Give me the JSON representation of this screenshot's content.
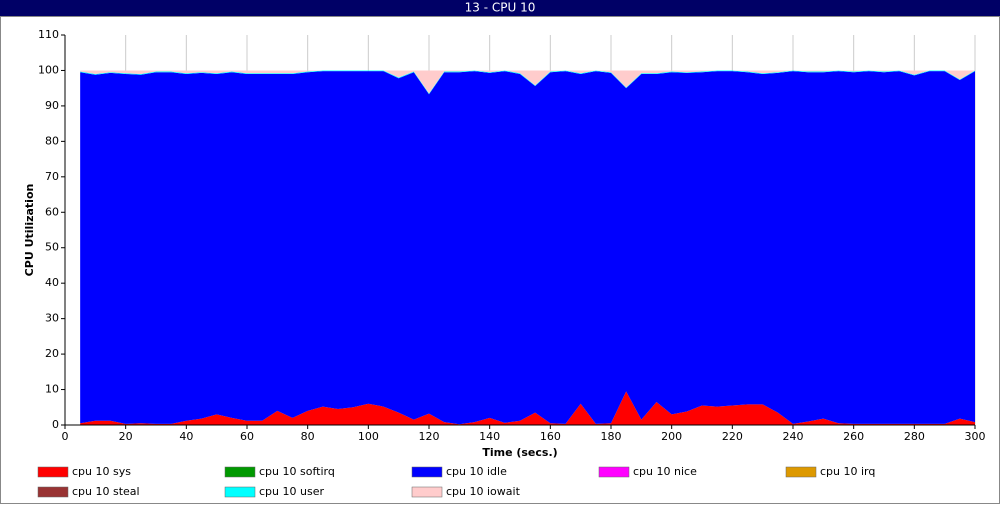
{
  "chart_data": {
    "type": "stacked-area",
    "title": "13 - CPU 10",
    "x_label": "Time (secs.)",
    "y_label": "CPU Utilization",
    "x": [
      5,
      10,
      15,
      20,
      25,
      30,
      35,
      40,
      45,
      50,
      55,
      60,
      65,
      70,
      75,
      80,
      85,
      90,
      95,
      100,
      105,
      110,
      115,
      120,
      125,
      130,
      135,
      140,
      145,
      150,
      155,
      160,
      165,
      170,
      175,
      180,
      185,
      190,
      195,
      200,
      205,
      210,
      215,
      220,
      225,
      230,
      235,
      240,
      245,
      250,
      255,
      260,
      265,
      270,
      275,
      280,
      285,
      290,
      295,
      300
    ],
    "xlim": [
      0,
      300
    ],
    "xticks": [
      0,
      20,
      40,
      60,
      80,
      100,
      120,
      140,
      160,
      180,
      200,
      220,
      240,
      260,
      280,
      300
    ],
    "ylim": [
      0,
      110
    ],
    "yticks": [
      0,
      10,
      20,
      30,
      40,
      50,
      60,
      70,
      80,
      90,
      100,
      110
    ],
    "grid": "x",
    "legend": "bottom",
    "series": [
      {
        "name": "cpu 10 sys",
        "color": "#ff0000",
        "values": [
          0.5,
          1.2,
          1.2,
          0.3,
          0.5,
          0.3,
          0.3,
          1.2,
          1.8,
          3.0,
          2.0,
          1.2,
          1.2,
          4.0,
          2.0,
          4.0,
          5.2,
          4.5,
          5.0,
          6.0,
          5.2,
          3.5,
          1.5,
          3.2,
          0.8,
          0.2,
          0.8,
          2.0,
          0.6,
          1.2,
          3.5,
          0.5,
          0.3,
          6.0,
          0.3,
          0.5,
          9.5,
          1.5,
          6.5,
          3.0,
          3.8,
          5.5,
          5.2,
          5.5,
          5.8,
          5.8,
          3.5,
          0.3,
          1.0,
          1.8,
          0.5,
          0.3,
          0.3,
          0.3,
          0.3,
          0.3,
          0.3,
          0.3,
          1.8,
          0.8
        ]
      },
      {
        "name": "cpu 10 softirq",
        "color": "#009900",
        "values": [
          0,
          0,
          0,
          0,
          0,
          0,
          0,
          0,
          0,
          0,
          0,
          0,
          0,
          0,
          0,
          0,
          0,
          0,
          0,
          0,
          0,
          0,
          0,
          0,
          0,
          0,
          0,
          0,
          0,
          0,
          0,
          0,
          0,
          0,
          0,
          0,
          0,
          0,
          0,
          0,
          0,
          0,
          0,
          0,
          0,
          0,
          0,
          0,
          0,
          0,
          0,
          0,
          0,
          0,
          0,
          0,
          0,
          0,
          0,
          0
        ]
      },
      {
        "name": "cpu 10 idle",
        "color": "#0000ff",
        "values": [
          99.0,
          97.6,
          98.1,
          98.7,
          98.3,
          99.2,
          99.2,
          97.8,
          97.5,
          96.0,
          97.5,
          97.8,
          97.8,
          95.0,
          97.0,
          95.5,
          94.6,
          95.3,
          94.8,
          93.8,
          94.6,
          94.3,
          98.0,
          90.1,
          98.7,
          99.3,
          99.0,
          97.3,
          99.2,
          97.8,
          92.1,
          99.0,
          99.5,
          93.0,
          99.5,
          98.8,
          85.5,
          97.5,
          92.5,
          96.5,
          95.5,
          94.0,
          94.6,
          94.3,
          93.7,
          93.2,
          95.8,
          99.5,
          98.5,
          97.7,
          99.3,
          99.2,
          99.5,
          99.2,
          99.5,
          98.3,
          99.5,
          99.5,
          95.5,
          99.0
        ]
      },
      {
        "name": "cpu 10 nice",
        "color": "#ff00ff",
        "values": [
          0,
          0,
          0,
          0,
          0,
          0,
          0,
          0,
          0,
          0,
          0,
          0,
          0,
          0,
          0,
          0,
          0,
          0,
          0,
          0,
          0,
          0,
          0,
          0,
          0,
          0,
          0,
          0,
          0,
          0,
          0,
          0,
          0,
          0,
          0,
          0,
          0,
          0,
          0,
          0,
          0,
          0,
          0,
          0,
          0,
          0,
          0,
          0,
          0,
          0,
          0,
          0,
          0,
          0,
          0,
          0,
          0,
          0,
          0,
          0
        ]
      },
      {
        "name": "cpu 10 irq",
        "color": "#dd9900",
        "values": [
          0,
          0,
          0,
          0,
          0,
          0,
          0,
          0,
          0,
          0,
          0,
          0,
          0,
          0,
          0,
          0,
          0,
          0,
          0,
          0,
          0,
          0,
          0,
          0,
          0,
          0,
          0,
          0,
          0,
          0,
          0,
          0,
          0,
          0,
          0,
          0,
          0,
          0,
          0,
          0,
          0,
          0,
          0,
          0,
          0,
          0,
          0,
          0,
          0,
          0,
          0,
          0,
          0,
          0,
          0,
          0,
          0,
          0,
          0,
          0
        ]
      },
      {
        "name": "cpu 10 steal",
        "color": "#993333",
        "values": [
          0,
          0,
          0,
          0,
          0,
          0,
          0,
          0,
          0,
          0,
          0,
          0,
          0,
          0,
          0,
          0,
          0,
          0,
          0,
          0,
          0,
          0,
          0,
          0,
          0,
          0,
          0,
          0,
          0,
          0,
          0,
          0,
          0,
          0,
          0,
          0,
          0,
          0,
          0,
          0,
          0,
          0,
          0,
          0,
          0,
          0,
          0,
          0,
          0,
          0,
          0,
          0,
          0,
          0,
          0,
          0,
          0,
          0,
          0,
          0
        ]
      },
      {
        "name": "cpu 10 user",
        "color": "#00ffff",
        "values": [
          0.2,
          0.2,
          0.2,
          0.2,
          0.2,
          0.2,
          0.2,
          0.2,
          0.2,
          0.2,
          0.2,
          0.2,
          0.2,
          0.2,
          0.2,
          0.2,
          0.2,
          0.2,
          0.2,
          0.2,
          0.2,
          0.2,
          0.2,
          0.2,
          0.2,
          0.2,
          0.2,
          0.2,
          0.2,
          0.2,
          0.2,
          0.2,
          0.2,
          0.2,
          0.2,
          0.2,
          0.2,
          0.2,
          0.2,
          0.2,
          0.2,
          0.2,
          0.2,
          0.2,
          0.2,
          0.2,
          0.2,
          0.2,
          0.2,
          0.2,
          0.2,
          0.2,
          0.2,
          0.2,
          0.2,
          0.2,
          0.2,
          0.2,
          0.2,
          0.2
        ]
      },
      {
        "name": "cpu 10 iowait",
        "color": "#ffcccc",
        "values": [
          0.3,
          1.0,
          0.5,
          0.8,
          1.0,
          0.3,
          0.3,
          0.8,
          0.5,
          0.8,
          0.3,
          0.8,
          0.8,
          0.8,
          0.8,
          0.3,
          0,
          0,
          0,
          0,
          0,
          2.0,
          0.3,
          6.5,
          0.3,
          0.3,
          0,
          0.5,
          0,
          0.8,
          4.2,
          0.3,
          0,
          0.8,
          0,
          0.5,
          4.8,
          0.8,
          0.8,
          0.3,
          0.5,
          0.3,
          0,
          0,
          0.3,
          0.8,
          0.5,
          0,
          0.3,
          0.3,
          0,
          0.3,
          0,
          0.3,
          0,
          1.2,
          0,
          0,
          2.5,
          0
        ]
      }
    ]
  }
}
